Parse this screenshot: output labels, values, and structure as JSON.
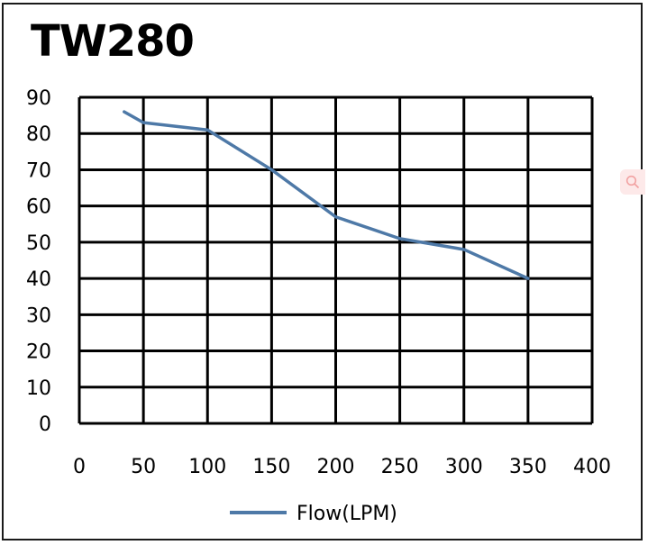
{
  "chart_data": {
    "type": "line",
    "title": "TW280",
    "x": [
      35,
      50,
      100,
      150,
      200,
      250,
      300,
      350
    ],
    "series": [
      {
        "name": "Flow(LPM)",
        "values": [
          86,
          83,
          81,
          70,
          57,
          51,
          48,
          40
        ]
      }
    ],
    "xticks": [
      "0",
      "50",
      "100",
      "150",
      "200",
      "250",
      "300",
      "350",
      "400"
    ],
    "yticks": [
      "90",
      "80",
      "70",
      "60",
      "50",
      "40",
      "30",
      "20",
      "10",
      "0"
    ],
    "xlim": [
      0,
      400
    ],
    "ylim": [
      0,
      90
    ],
    "grid": true,
    "legend_position": "bottom-center",
    "line_color": "#4e79a7",
    "grid_color": "#000000"
  }
}
